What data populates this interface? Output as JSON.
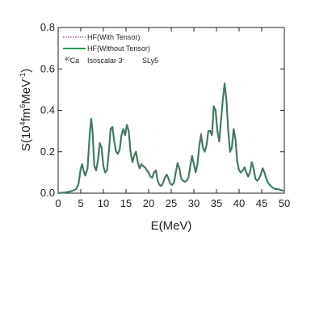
{
  "chart_data": {
    "type": "line",
    "xlabel": "E(MeV)",
    "ylabel_parts": {
      "pre": "S(10",
      "e1": "4",
      "mid": "fm",
      "e2": "6",
      "post": "MeV",
      "e3": "-1",
      "close": ")"
    },
    "xlim": [
      0,
      50
    ],
    "ylim": [
      0,
      0.8
    ],
    "x_ticks": [
      0,
      5,
      10,
      15,
      20,
      25,
      30,
      35,
      40,
      45,
      50
    ],
    "y_ticks": [
      0.0,
      0.2,
      0.4,
      0.6,
      0.8
    ],
    "x_tick_labels": [
      "0",
      "5",
      "10",
      "15",
      "20",
      "25",
      "30",
      "35",
      "40",
      "45",
      "50"
    ],
    "y_tick_labels": [
      "0.0",
      "0.2",
      "0.4",
      "0.6",
      "0.8"
    ],
    "legend_position": "top-left",
    "annotation": {
      "nucleus_mass": "40",
      "nucleus": "Ca",
      "mode": "Isoscalar 3",
      "mode_sup": "-",
      "force": "SLy5"
    },
    "series": [
      {
        "name": "HF(With Tensor)",
        "color": "#8b3a8f",
        "dash": "dotted",
        "x": [
          0,
          2,
          3,
          4,
          4.5,
          5,
          5.3,
          5.6,
          6,
          6.5,
          7,
          7.3,
          7.6,
          8,
          8.4,
          8.8,
          9.2,
          9.6,
          10,
          10.4,
          10.8,
          11.2,
          11.6,
          12,
          12.4,
          12.8,
          13.2,
          13.6,
          14,
          14.4,
          14.8,
          15.2,
          15.6,
          16,
          16.4,
          16.8,
          17.2,
          17.6,
          18,
          18.4,
          18.8,
          19.2,
          19.6,
          20,
          20.4,
          20.8,
          21.2,
          21.6,
          22,
          22.4,
          22.8,
          23.2,
          23.6,
          24,
          24.4,
          24.8,
          25.2,
          25.6,
          26,
          26.4,
          26.8,
          27.2,
          27.6,
          28,
          28.4,
          28.8,
          29.2,
          29.6,
          30,
          30.4,
          30.8,
          31.2,
          31.6,
          32,
          32.4,
          32.8,
          33.2,
          33.6,
          34,
          34.4,
          34.8,
          35.2,
          35.6,
          36,
          36.4,
          36.8,
          37.2,
          37.6,
          38,
          38.4,
          38.8,
          39.2,
          39.6,
          40,
          40.4,
          40.8,
          41.2,
          41.6,
          42,
          42.4,
          42.8,
          43.2,
          43.6,
          44,
          44.4,
          44.8,
          45.2,
          45.6,
          46,
          46.4,
          46.8,
          47.2,
          47.6,
          48,
          48.4,
          48.8,
          49.2,
          49.6,
          50
        ],
        "y": [
          0.0,
          0.005,
          0.01,
          0.02,
          0.045,
          0.12,
          0.14,
          0.11,
          0.085,
          0.12,
          0.3,
          0.355,
          0.3,
          0.13,
          0.11,
          0.16,
          0.245,
          0.22,
          0.13,
          0.1,
          0.11,
          0.2,
          0.31,
          0.32,
          0.25,
          0.2,
          0.19,
          0.21,
          0.28,
          0.31,
          0.28,
          0.33,
          0.3,
          0.2,
          0.15,
          0.18,
          0.2,
          0.15,
          0.12,
          0.14,
          0.13,
          0.125,
          0.11,
          0.1,
          0.08,
          0.075,
          0.1,
          0.11,
          0.06,
          0.04,
          0.035,
          0.05,
          0.075,
          0.09,
          0.07,
          0.045,
          0.04,
          0.05,
          0.1,
          0.145,
          0.12,
          0.07,
          0.06,
          0.055,
          0.06,
          0.075,
          0.13,
          0.18,
          0.14,
          0.1,
          0.14,
          0.23,
          0.29,
          0.22,
          0.2,
          0.23,
          0.3,
          0.3,
          0.28,
          0.42,
          0.4,
          0.3,
          0.25,
          0.35,
          0.45,
          0.52,
          0.45,
          0.3,
          0.2,
          0.22,
          0.31,
          0.26,
          0.15,
          0.11,
          0.1,
          0.11,
          0.125,
          0.1,
          0.08,
          0.1,
          0.15,
          0.12,
          0.07,
          0.06,
          0.07,
          0.09,
          0.12,
          0.1,
          0.07,
          0.05,
          0.04,
          0.03,
          0.025,
          0.02,
          0.02,
          0.018,
          0.015,
          0.013,
          0.012
        ]
      },
      {
        "name": "HF(Without Tensor)",
        "color": "#1f9e4a",
        "dash": "solid",
        "x": [
          0,
          2,
          3,
          4,
          4.5,
          5,
          5.3,
          5.6,
          6,
          6.5,
          7,
          7.3,
          7.6,
          8,
          8.4,
          8.8,
          9.2,
          9.6,
          10,
          10.4,
          10.8,
          11.2,
          11.6,
          12,
          12.4,
          12.8,
          13.2,
          13.6,
          14,
          14.4,
          14.8,
          15.2,
          15.6,
          16,
          16.4,
          16.8,
          17.2,
          17.6,
          18,
          18.4,
          18.8,
          19.2,
          19.6,
          20,
          20.4,
          20.8,
          21.2,
          21.6,
          22,
          22.4,
          22.8,
          23.2,
          23.6,
          24,
          24.4,
          24.8,
          25.2,
          25.6,
          26,
          26.4,
          26.8,
          27.2,
          27.6,
          28,
          28.4,
          28.8,
          29.2,
          29.6,
          30,
          30.4,
          30.8,
          31.2,
          31.6,
          32,
          32.4,
          32.8,
          33.2,
          33.6,
          34,
          34.4,
          34.8,
          35.2,
          35.6,
          36,
          36.4,
          36.8,
          37.2,
          37.6,
          38,
          38.4,
          38.8,
          39.2,
          39.6,
          40,
          40.4,
          40.8,
          41.2,
          41.6,
          42,
          42.4,
          42.8,
          43.2,
          43.6,
          44,
          44.4,
          44.8,
          45.2,
          45.6,
          46,
          46.4,
          46.8,
          47.2,
          47.6,
          48,
          48.4,
          48.8,
          49.2,
          49.6,
          50
        ],
        "y": [
          0.0,
          0.005,
          0.01,
          0.02,
          0.045,
          0.12,
          0.14,
          0.11,
          0.085,
          0.12,
          0.29,
          0.36,
          0.3,
          0.13,
          0.11,
          0.16,
          0.24,
          0.22,
          0.13,
          0.1,
          0.11,
          0.2,
          0.31,
          0.32,
          0.25,
          0.2,
          0.19,
          0.21,
          0.28,
          0.31,
          0.28,
          0.33,
          0.3,
          0.2,
          0.15,
          0.18,
          0.2,
          0.15,
          0.12,
          0.14,
          0.13,
          0.125,
          0.11,
          0.1,
          0.08,
          0.075,
          0.1,
          0.11,
          0.06,
          0.04,
          0.035,
          0.05,
          0.075,
          0.09,
          0.07,
          0.045,
          0.04,
          0.05,
          0.1,
          0.145,
          0.12,
          0.07,
          0.06,
          0.055,
          0.06,
          0.075,
          0.13,
          0.18,
          0.14,
          0.1,
          0.14,
          0.23,
          0.28,
          0.22,
          0.2,
          0.23,
          0.3,
          0.3,
          0.28,
          0.42,
          0.4,
          0.3,
          0.25,
          0.35,
          0.45,
          0.53,
          0.45,
          0.3,
          0.2,
          0.22,
          0.31,
          0.26,
          0.15,
          0.11,
          0.1,
          0.11,
          0.125,
          0.1,
          0.08,
          0.1,
          0.15,
          0.12,
          0.07,
          0.06,
          0.07,
          0.09,
          0.12,
          0.1,
          0.07,
          0.05,
          0.04,
          0.03,
          0.025,
          0.02,
          0.02,
          0.018,
          0.015,
          0.013,
          0.012
        ]
      }
    ]
  }
}
